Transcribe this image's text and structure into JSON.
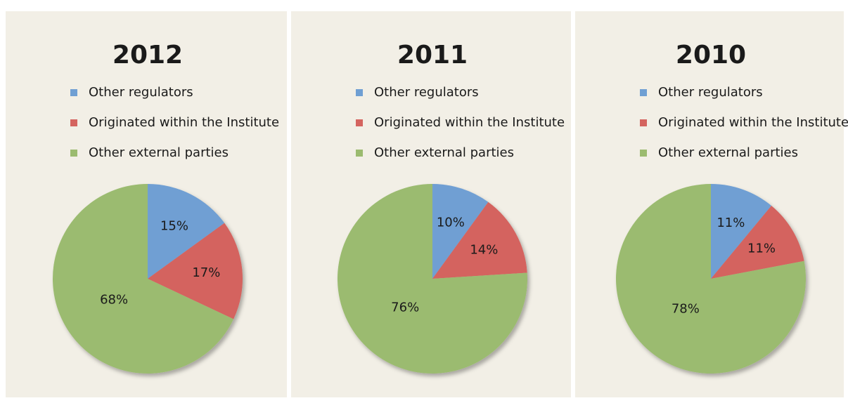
{
  "chart_data": [
    {
      "type": "pie",
      "title": "2012",
      "categories": [
        "Other regulators",
        "Originated within the Institute",
        "Other external parties"
      ],
      "values": [
        15,
        17,
        68
      ],
      "value_labels": [
        "15%",
        "17%",
        "68%"
      ],
      "colors": [
        "#6f9fd3",
        "#d4645f",
        "#9bbb6f"
      ]
    },
    {
      "type": "pie",
      "title": "2011",
      "categories": [
        "Other regulators",
        "Originated within the Institute",
        "Other external parties"
      ],
      "values": [
        10,
        14,
        76
      ],
      "value_labels": [
        "10%",
        "14%",
        "76%"
      ],
      "colors": [
        "#6f9fd3",
        "#d4645f",
        "#9bbb6f"
      ]
    },
    {
      "type": "pie",
      "title": "2010",
      "categories": [
        "Other regulators",
        "Originated within the Institute",
        "Other external parties"
      ],
      "values": [
        11,
        11,
        78
      ],
      "value_labels": [
        "11%",
        "11%",
        "78%"
      ],
      "colors": [
        "#6f9fd3",
        "#d4645f",
        "#9bbb6f"
      ]
    }
  ]
}
